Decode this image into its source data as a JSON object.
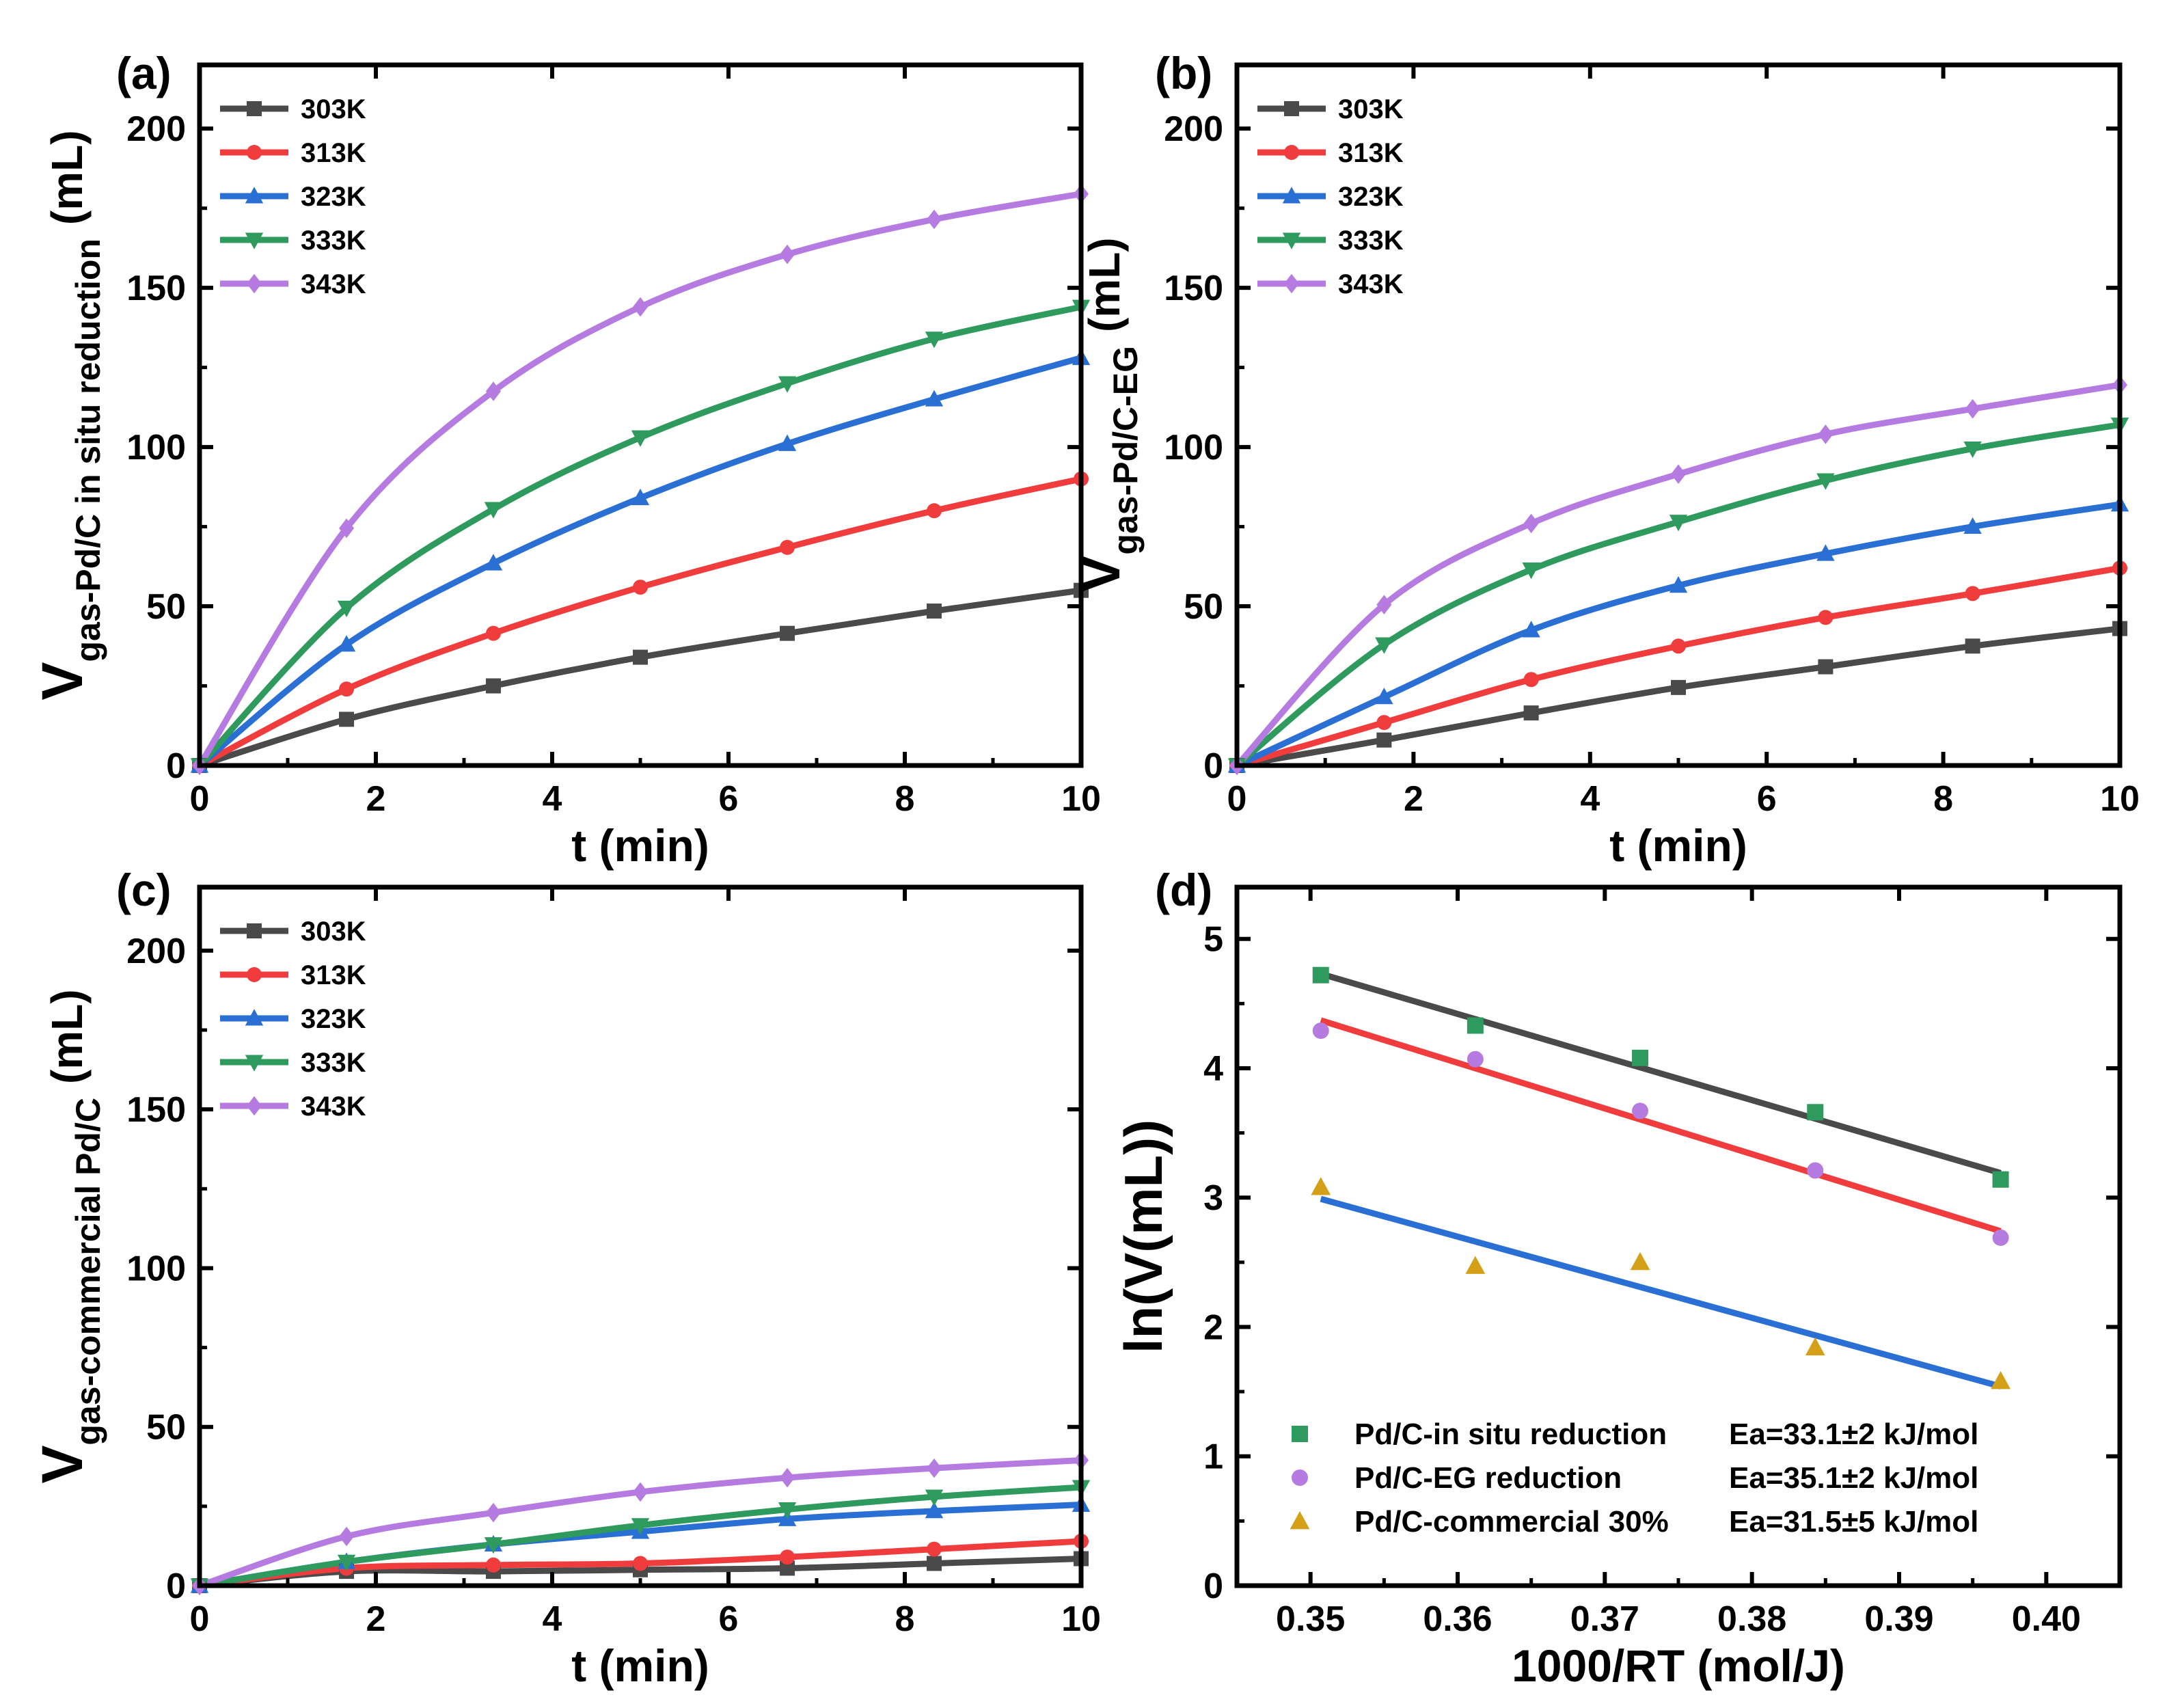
{
  "figure": {
    "aria_label": "Gas volume vs time for three Pd/C catalysts at five temperatures and Arrhenius plot"
  },
  "chart_data": [
    {
      "panel": "(a)",
      "type": "line",
      "x": [
        0,
        1.667,
        3.333,
        5.0,
        6.667,
        8.333,
        10.0
      ],
      "xlabel": "t (min)",
      "ylabel_main": "V",
      "ylabel_sub": "gas-Pd/C in situ reduction",
      "ylabel_unit": "(mL)",
      "xlim": [
        0,
        10
      ],
      "ylim": [
        0,
        220
      ],
      "xticks": [
        0,
        2,
        4,
        6,
        8,
        10
      ],
      "yticks": [
        0,
        50,
        100,
        150,
        200
      ],
      "series": [
        {
          "name": "303K",
          "color": "#4a4a4a",
          "marker": "square",
          "values": [
            0,
            14.5,
            25,
            34,
            41.5,
            48.5,
            55
          ]
        },
        {
          "name": "313K",
          "color": "#f03c3c",
          "marker": "circle",
          "values": [
            0,
            24,
            41.5,
            56,
            68.5,
            80,
            90
          ]
        },
        {
          "name": "323K",
          "color": "#2a6fd4",
          "marker": "triangle-up",
          "values": [
            0,
            38,
            63.5,
            84,
            101,
            115,
            128
          ]
        },
        {
          "name": "333K",
          "color": "#2e9a5e",
          "marker": "triangle-down",
          "values": [
            0,
            49.5,
            80.5,
            103,
            120,
            134,
            144
          ]
        },
        {
          "name": "343K",
          "color": "#b57be0",
          "marker": "diamond",
          "values": [
            0,
            74.5,
            117.5,
            144,
            160.5,
            171.5,
            179.5
          ]
        }
      ]
    },
    {
      "panel": "(b)",
      "type": "line",
      "x": [
        0,
        1.667,
        3.333,
        5.0,
        6.667,
        8.333,
        10.0
      ],
      "xlabel": "t (min)",
      "ylabel_main": "V",
      "ylabel_sub": "gas-Pd/C-EG",
      "ylabel_unit": "(mL)",
      "xlim": [
        0,
        10
      ],
      "ylim": [
        0,
        220
      ],
      "xticks": [
        0,
        2,
        4,
        6,
        8,
        10
      ],
      "yticks": [
        0,
        50,
        100,
        150,
        200
      ],
      "series": [
        {
          "name": "303K",
          "color": "#4a4a4a",
          "marker": "square",
          "values": [
            0,
            8,
            16.5,
            24.5,
            31,
            37.5,
            43
          ]
        },
        {
          "name": "313K",
          "color": "#f03c3c",
          "marker": "circle",
          "values": [
            0,
            13.5,
            27,
            37.5,
            46.5,
            54,
            62
          ]
        },
        {
          "name": "323K",
          "color": "#2a6fd4",
          "marker": "triangle-up",
          "values": [
            0,
            21.5,
            42.5,
            56.5,
            66.5,
            75,
            82
          ]
        },
        {
          "name": "333K",
          "color": "#2e9a5e",
          "marker": "triangle-down",
          "values": [
            0,
            38,
            61.5,
            76.5,
            89.5,
            99.5,
            107
          ]
        },
        {
          "name": "343K",
          "color": "#b57be0",
          "marker": "diamond",
          "values": [
            0,
            50.5,
            76,
            91.5,
            104,
            112,
            119.5
          ]
        }
      ]
    },
    {
      "panel": "(c)",
      "type": "line",
      "x": [
        0,
        1.667,
        3.333,
        5.0,
        6.667,
        8.333,
        10.0
      ],
      "xlabel": "t (min)",
      "ylabel_main": "V",
      "ylabel_sub": "gas-commercial Pd/C",
      "ylabel_unit": "(mL)",
      "xlim": [
        0,
        10
      ],
      "ylim": [
        0,
        220
      ],
      "xticks": [
        0,
        2,
        4,
        6,
        8,
        10
      ],
      "yticks": [
        0,
        50,
        100,
        150,
        200
      ],
      "series": [
        {
          "name": "303K",
          "color": "#4a4a4a",
          "marker": "square",
          "values": [
            0,
            4.5,
            4.5,
            5,
            5.5,
            7,
            8.5
          ]
        },
        {
          "name": "313K",
          "color": "#f03c3c",
          "marker": "circle",
          "values": [
            0,
            5.5,
            6.5,
            7,
            9,
            11.5,
            14
          ]
        },
        {
          "name": "323K",
          "color": "#2a6fd4",
          "marker": "triangle-up",
          "values": [
            0,
            7.5,
            13,
            17,
            21,
            23.5,
            25.5
          ]
        },
        {
          "name": "333K",
          "color": "#2e9a5e",
          "marker": "triangle-down",
          "values": [
            0,
            7.5,
            13,
            19,
            24,
            28,
            31
          ]
        },
        {
          "name": "343K",
          "color": "#b57be0",
          "marker": "diamond",
          "values": [
            0,
            15.5,
            23,
            29.5,
            34,
            37,
            39.5
          ]
        }
      ]
    },
    {
      "panel": "(d)",
      "type": "scatter",
      "xlabel": "1000/RT (mol/J)",
      "ylabel": "ln(V(mL))",
      "xlim": [
        0.345,
        0.405
      ],
      "ylim": [
        0,
        5.4
      ],
      "xticks": [
        "0.35",
        "0.36",
        "0.37",
        "0.38",
        "0.39",
        "0.40"
      ],
      "yticks": [
        "0",
        "1",
        "2",
        "3",
        "4",
        "5"
      ],
      "series": [
        {
          "name": "Pd/C-in situ reduction",
          "ea": "Ea=33.1±2 kJ/mol",
          "marker": "square",
          "color": "#2e9a5e",
          "fit_color": "#4a4a4a",
          "x": [
            0.3507,
            0.3612,
            0.3724,
            0.3843,
            0.3969
          ],
          "y": [
            4.72,
            4.33,
            4.08,
            3.66,
            3.14
          ],
          "fit": [
            [
              0.3507,
              4.73
            ],
            [
              0.3969,
              3.19
            ]
          ]
        },
        {
          "name": "Pd/C-EG reduction",
          "ea": "Ea=35.1±2 kJ/mol",
          "marker": "circle",
          "color": "#b57be0",
          "fit_color": "#f03c3c",
          "x": [
            0.3507,
            0.3612,
            0.3724,
            0.3843,
            0.3969
          ],
          "y": [
            4.29,
            4.07,
            3.67,
            3.21,
            2.69
          ],
          "fit": [
            [
              0.3507,
              4.37
            ],
            [
              0.3969,
              2.74
            ]
          ]
        },
        {
          "name": "Pd/C-commercial 30%",
          "ea": "Ea=31.5±5 kJ/mol",
          "marker": "triangle-up",
          "color": "#d4a017",
          "fit_color": "#2a6fd4",
          "x": [
            0.3507,
            0.3612,
            0.3724,
            0.3843,
            0.3969
          ],
          "y": [
            3.08,
            2.47,
            2.5,
            1.84,
            1.58
          ],
          "fit": [
            [
              0.3507,
              2.99
            ],
            [
              0.3969,
              1.54
            ]
          ]
        }
      ]
    }
  ]
}
